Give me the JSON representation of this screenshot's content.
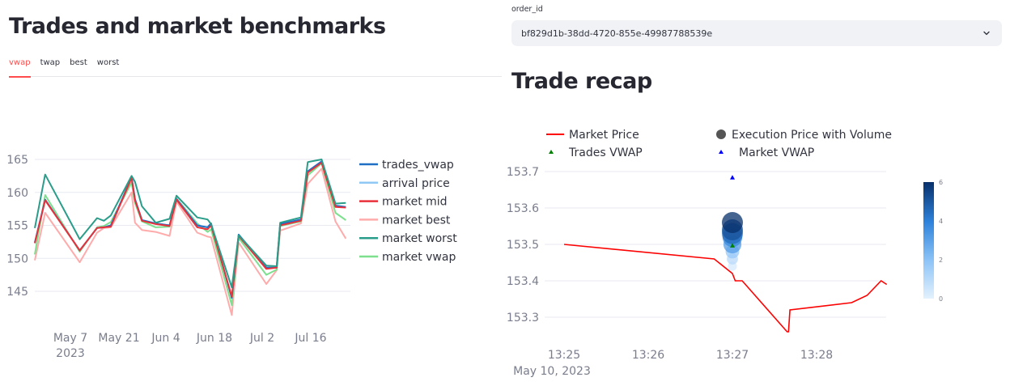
{
  "left": {
    "title": "Trades and market benchmarks",
    "tabs": [
      {
        "label": "vwap",
        "active": true
      },
      {
        "label": "twap",
        "active": false
      },
      {
        "label": "best",
        "active": false
      },
      {
        "label": "worst",
        "active": false
      }
    ]
  },
  "right": {
    "select": {
      "label": "order_id",
      "value": "bf829d1b-38dd-4720-855e-49987788539e"
    },
    "title": "Trade recap"
  },
  "colors": {
    "accent": "#ff4b4b",
    "trades_vwap": "#1f6fc5",
    "arrival_price": "#8fc8f5",
    "market_mid": "#e8313a",
    "market_best": "#ffabab",
    "market_worst": "#2a9d8a",
    "market_vwap": "#7ee08f",
    "market_price": "#ff0000",
    "trades_vwap_marker": "#008000",
    "market_vwap_marker": "#0000ff"
  },
  "chart_data": [
    {
      "type": "line",
      "title": "",
      "xlabel": "",
      "ylabel": "",
      "x_tick_labels": [
        "May 7\n2023",
        "May 21",
        "Jun 4",
        "Jun 18",
        "Jul 2",
        "Jul 16"
      ],
      "y_tick_labels": [
        "145",
        "150",
        "155",
        "160",
        "165"
      ],
      "ylim": [
        140.5,
        166.5
      ],
      "grid": true,
      "legend_position": "right",
      "x": [
        "2023-04-27",
        "2023-04-30",
        "2023-05-10",
        "2023-05-15",
        "2023-05-17",
        "2023-05-19",
        "2023-05-25",
        "2023-05-26",
        "2023-05-28",
        "2023-06-01",
        "2023-06-05",
        "2023-06-07",
        "2023-06-13",
        "2023-06-16",
        "2023-06-17",
        "2023-06-23",
        "2023-06-25",
        "2023-07-03",
        "2023-07-06",
        "2023-07-07",
        "2023-07-13",
        "2023-07-15",
        "2023-07-19",
        "2023-07-23",
        "2023-07-26"
      ],
      "series": [
        {
          "name": "trades_vwap",
          "values": [
            152.4,
            158.9,
            151.2,
            154.6,
            154.7,
            155.0,
            162.3,
            159.0,
            155.8,
            155.3,
            155.0,
            159.0,
            155.0,
            154.7,
            155.3,
            144.0,
            153.6,
            148.6,
            148.6,
            155.2,
            155.9,
            163.2,
            164.7,
            158.0,
            157.8
          ]
        },
        {
          "name": "arrival price",
          "values": [
            152.4,
            158.9,
            151.2,
            154.6,
            154.7,
            155.0,
            162.3,
            159.0,
            155.8,
            155.3,
            155.0,
            159.0,
            155.0,
            154.7,
            155.3,
            144.0,
            153.6,
            148.6,
            148.6,
            155.2,
            155.9,
            163.2,
            164.7,
            158.0,
            157.8
          ]
        },
        {
          "name": "market mid",
          "values": [
            152.3,
            158.8,
            151.2,
            154.6,
            154.7,
            154.8,
            162.2,
            158.8,
            155.7,
            155.2,
            154.9,
            158.9,
            154.7,
            154.4,
            155.0,
            144.2,
            153.4,
            148.4,
            148.6,
            155.0,
            155.7,
            163.0,
            164.5,
            157.8,
            157.7
          ]
        },
        {
          "name": "market best",
          "values": [
            149.7,
            156.9,
            149.4,
            153.9,
            154.6,
            154.7,
            160.0,
            155.4,
            154.3,
            154.0,
            153.4,
            158.6,
            153.9,
            153.3,
            153.2,
            141.4,
            152.4,
            146.1,
            148.2,
            154.2,
            155.3,
            161.3,
            163.6,
            155.6,
            153.0
          ]
        },
        {
          "name": "market worst",
          "values": [
            154.6,
            162.7,
            152.9,
            156.1,
            155.7,
            156.5,
            162.5,
            161.6,
            157.9,
            155.4,
            156.0,
            159.5,
            156.2,
            155.9,
            155.2,
            145.6,
            153.5,
            148.9,
            148.8,
            155.4,
            156.2,
            164.6,
            165.0,
            158.3,
            158.4
          ]
        },
        {
          "name": "market vwap",
          "values": [
            150.6,
            159.6,
            151.0,
            154.7,
            154.9,
            155.5,
            161.5,
            158.4,
            155.6,
            154.7,
            154.8,
            159.1,
            155.3,
            154.0,
            154.4,
            142.9,
            153.1,
            147.5,
            148.3,
            154.9,
            155.6,
            162.6,
            164.4,
            156.9,
            155.8
          ]
        }
      ]
    },
    {
      "type": "line",
      "title": "",
      "xlabel": "",
      "ylabel": "",
      "x_tick_labels": [
        "13:25\nMay 10, 2023",
        "13:26",
        "13:27",
        "13:28"
      ],
      "y_tick_labels": [
        "153.3",
        "153.4",
        "153.5",
        "153.6",
        "153.7"
      ],
      "ylim": [
        153.24,
        153.73
      ],
      "grid": true,
      "legend_position": "top",
      "legend": [
        "Market Price",
        "Execution Price with Volume",
        "Trades VWAP",
        "Market VWAP"
      ],
      "series": [
        {
          "name": "Market Price",
          "x": [
            "13:25:00",
            "13:26:47",
            "13:27:00",
            "13:27:02",
            "13:27:07",
            "13:27:39",
            "13:27:40",
            "13:27:41",
            "13:28:25",
            "13:28:36",
            "13:28:46",
            "13:28:50"
          ],
          "values": [
            153.5,
            153.46,
            153.42,
            153.4,
            153.4,
            153.26,
            153.26,
            153.32,
            153.34,
            153.36,
            153.4,
            153.39
          ]
        },
        {
          "name": "Execution Price with Volume",
          "x": [
            "13:27:00",
            "13:27:00",
            "13:27:00",
            "13:27:00",
            "13:27:00",
            "13:27:00",
            "13:27:00",
            "13:27:00"
          ],
          "values": [
            153.44,
            153.46,
            153.48,
            153.5,
            153.52,
            153.53,
            153.54,
            153.56
          ],
          "volume": [
            0.3,
            1.0,
            1.8,
            3.2,
            3.8,
            4.6,
            5.2,
            6.0
          ]
        },
        {
          "name": "Trades VWAP",
          "x": [
            "13:27:00"
          ],
          "values": [
            153.497
          ]
        },
        {
          "name": "Market VWAP",
          "x": [
            "13:27:00"
          ],
          "values": [
            153.684
          ]
        }
      ],
      "colorbar": {
        "ticks": [
          "0",
          "2",
          "4",
          "6"
        ],
        "range": [
          0,
          6
        ],
        "colorscale": "Blues"
      }
    }
  ]
}
